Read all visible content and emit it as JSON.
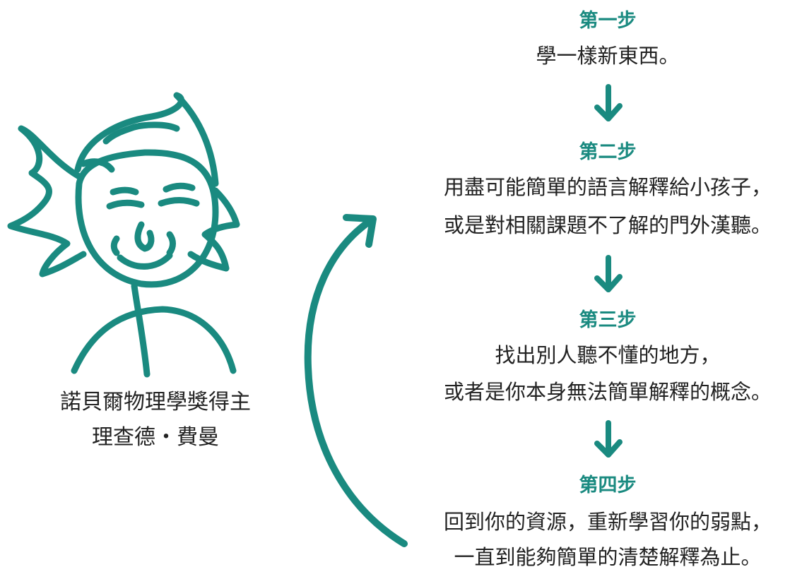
{
  "colors": {
    "accent": "#1a8a80",
    "text": "#222222",
    "background": "#ffffff"
  },
  "portrait": {
    "icon": "smiling-face-icon",
    "caption_line1": "諾貝爾物理學獎得主",
    "caption_line2": "理查德・費曼"
  },
  "steps": [
    {
      "title": "第一步",
      "lines": [
        "學一樣新東西。"
      ]
    },
    {
      "title": "第二步",
      "lines": [
        "用盡可能簡單的語言解釋給小孩子，",
        "或是對相關課題不了解的門外漢聽。"
      ]
    },
    {
      "title": "第三步",
      "lines": [
        "找出別人聽不懂的地方，",
        "或者是你本身無法簡單解釋的概念。"
      ]
    },
    {
      "title": "第四步",
      "lines": [
        "回到你的資源，重新學習你的弱點，",
        "一直到能夠簡單的清楚解釋為止。"
      ]
    }
  ],
  "arrows": {
    "down_icon": "arrow-down-icon",
    "loop_icon": "curved-return-arrow-icon"
  }
}
